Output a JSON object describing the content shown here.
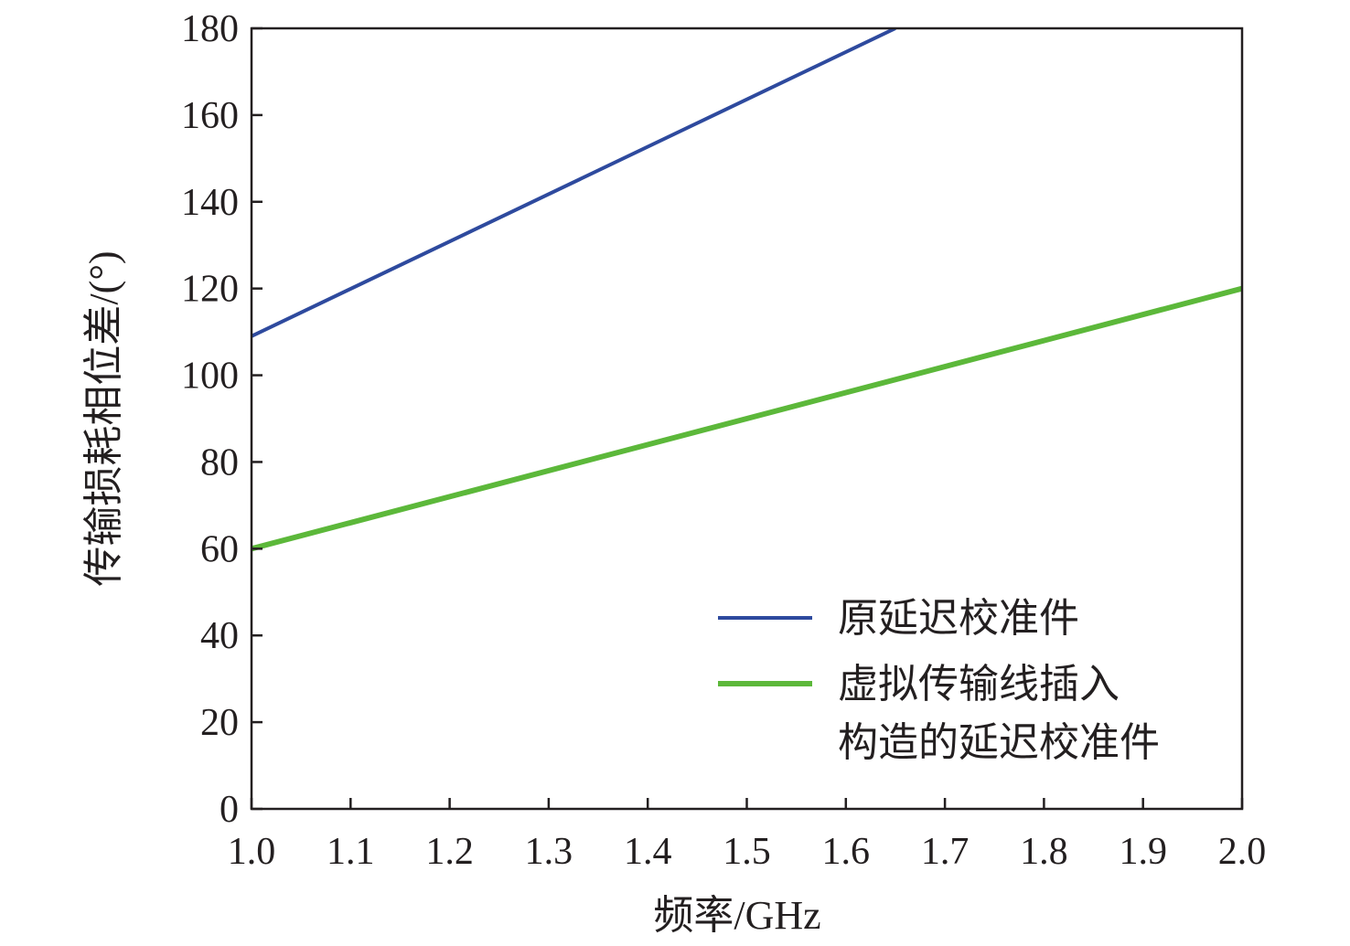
{
  "chart_data": {
    "type": "line",
    "xlabel": "频率/GHz",
    "ylabel": "传输损耗相位差/(°)",
    "xlim": [
      1.0,
      2.0
    ],
    "ylim": [
      0,
      180
    ],
    "xticks": [
      "1.0",
      "1.1",
      "1.2",
      "1.3",
      "1.4",
      "1.5",
      "1.6",
      "1.7",
      "1.8",
      "1.9",
      "2.0"
    ],
    "yticks": [
      "0",
      "20",
      "40",
      "60",
      "80",
      "100",
      "120",
      "140",
      "160",
      "180"
    ],
    "grid": false,
    "legend_position": "bottom-right",
    "series": [
      {
        "name": "原延迟校准件",
        "color": "#2e4a9e",
        "x": [
          1.0,
          1.65
        ],
        "y": [
          109,
          180
        ]
      },
      {
        "name_lines": [
          "虚拟传输线插入",
          "构造的延迟校准件"
        ],
        "color": "#5cb83a",
        "x": [
          1.0,
          2.0
        ],
        "y": [
          60,
          120
        ]
      }
    ]
  }
}
